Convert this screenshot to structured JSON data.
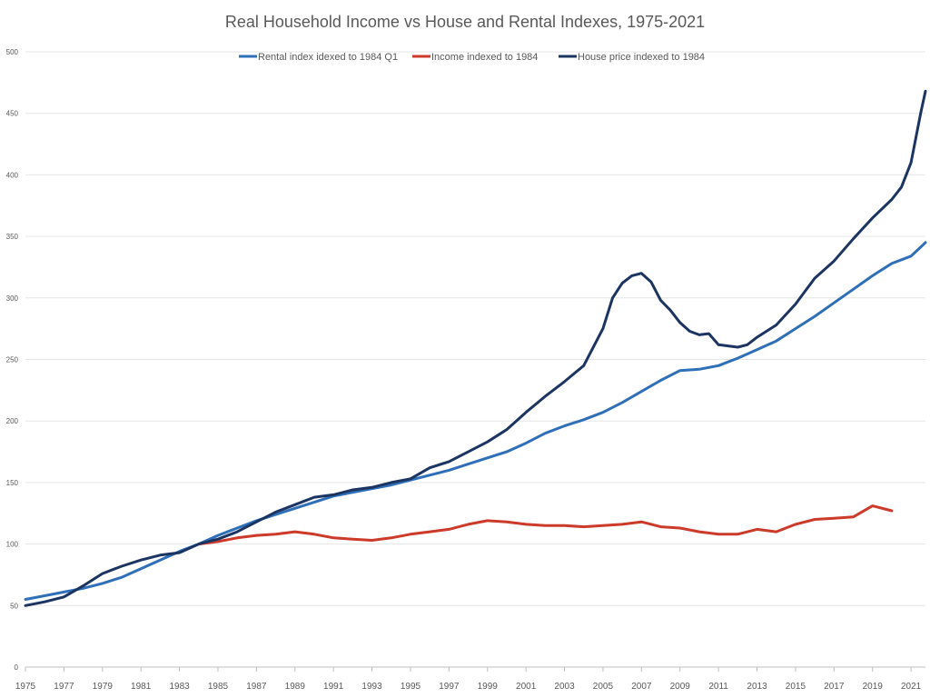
{
  "chart_data": {
    "type": "line",
    "title": "Real Household Income vs House and Rental Indexes, 1975-2021",
    "xlabel": "",
    "ylabel": "",
    "xlim": [
      1975,
      2021.75
    ],
    "ylim": [
      0,
      500
    ],
    "yticks": [
      0,
      50,
      100,
      150,
      200,
      250,
      300,
      350,
      400,
      450,
      500
    ],
    "xticks": [
      "1975",
      "1977",
      "1979",
      "1981",
      "1983",
      "1985",
      "1987",
      "1989",
      "1991",
      "1993",
      "1995",
      "1997",
      "1999",
      "2001",
      "2003",
      "2005",
      "2007",
      "2009",
      "2011",
      "2013",
      "2015",
      "2017",
      "2019",
      "2021"
    ],
    "grid": "horizontal",
    "legend_position": "top",
    "series": [
      {
        "name": "Rental index idexed to 1984 Q1",
        "color": "#2e6fb8",
        "x": [
          1975,
          1976,
          1977,
          1978,
          1979,
          1980,
          1981,
          1982,
          1983,
          1984,
          1985,
          1986,
          1987,
          1988,
          1989,
          1990,
          1991,
          1992,
          1993,
          1994,
          1995,
          1996,
          1997,
          1998,
          1999,
          2000,
          2001,
          2002,
          2003,
          2004,
          2005,
          2006,
          2007,
          2008,
          2009,
          2010,
          2011,
          2012,
          2013,
          2014,
          2015,
          2016,
          2017,
          2018,
          2019,
          2020,
          2021,
          2021.75
        ],
        "values": [
          55,
          58,
          61,
          64,
          68,
          73,
          80,
          87,
          94,
          100,
          107,
          113,
          119,
          124,
          129,
          134,
          139,
          142,
          145,
          148,
          152,
          156,
          160,
          165,
          170,
          175,
          182,
          190,
          196,
          201,
          207,
          215,
          224,
          233,
          241,
          242,
          245,
          251,
          258,
          265,
          275,
          285,
          296,
          307,
          318,
          328,
          334,
          345
        ]
      },
      {
        "name": "Income indexed to 1984",
        "color": "#cc3a2a",
        "x": [
          1984,
          1985,
          1986,
          1987,
          1988,
          1989,
          1990,
          1991,
          1992,
          1993,
          1994,
          1995,
          1996,
          1997,
          1998,
          1999,
          2000,
          2001,
          2002,
          2003,
          2004,
          2005,
          2006,
          2007,
          2008,
          2009,
          2010,
          2011,
          2012,
          2013,
          2014,
          2015,
          2016,
          2017,
          2018,
          2019,
          2020
        ],
        "values": [
          100,
          102,
          105,
          107,
          108,
          110,
          108,
          105,
          104,
          103,
          105,
          108,
          110,
          112,
          116,
          119,
          118,
          116,
          115,
          115,
          114,
          115,
          116,
          118,
          114,
          113,
          110,
          108,
          108,
          112,
          110,
          116,
          120,
          121,
          122,
          131,
          127
        ]
      },
      {
        "name": "House price indexed to 1984",
        "color": "#1b3461",
        "x": [
          1975,
          1976,
          1977,
          1978,
          1979,
          1980,
          1981,
          1982,
          1983,
          1984,
          1985,
          1986,
          1987,
          1988,
          1989,
          1990,
          1991,
          1992,
          1993,
          1994,
          1995,
          1996,
          1997,
          1998,
          1999,
          2000,
          2001,
          2002,
          2003,
          2004,
          2005,
          2005.5,
          2006,
          2006.5,
          2007,
          2007.5,
          2008,
          2008.5,
          2009,
          2009.5,
          2010,
          2010.5,
          2011,
          2011.5,
          2012,
          2012.5,
          2013,
          2014,
          2015,
          2016,
          2017,
          2018,
          2019,
          2020,
          2020.5,
          2021,
          2021.5,
          2021.75
        ],
        "values": [
          50,
          53,
          57,
          66,
          76,
          82,
          87,
          91,
          93,
          100,
          104,
          110,
          118,
          126,
          132,
          138,
          140,
          144,
          146,
          150,
          153,
          162,
          167,
          175,
          183,
          193,
          207,
          220,
          232,
          245,
          275,
          300,
          312,
          318,
          320,
          313,
          298,
          290,
          280,
          273,
          270,
          271,
          262,
          261,
          260,
          262,
          268,
          278,
          295,
          316,
          330,
          348,
          365,
          380,
          390,
          410,
          450,
          468
        ]
      }
    ]
  }
}
